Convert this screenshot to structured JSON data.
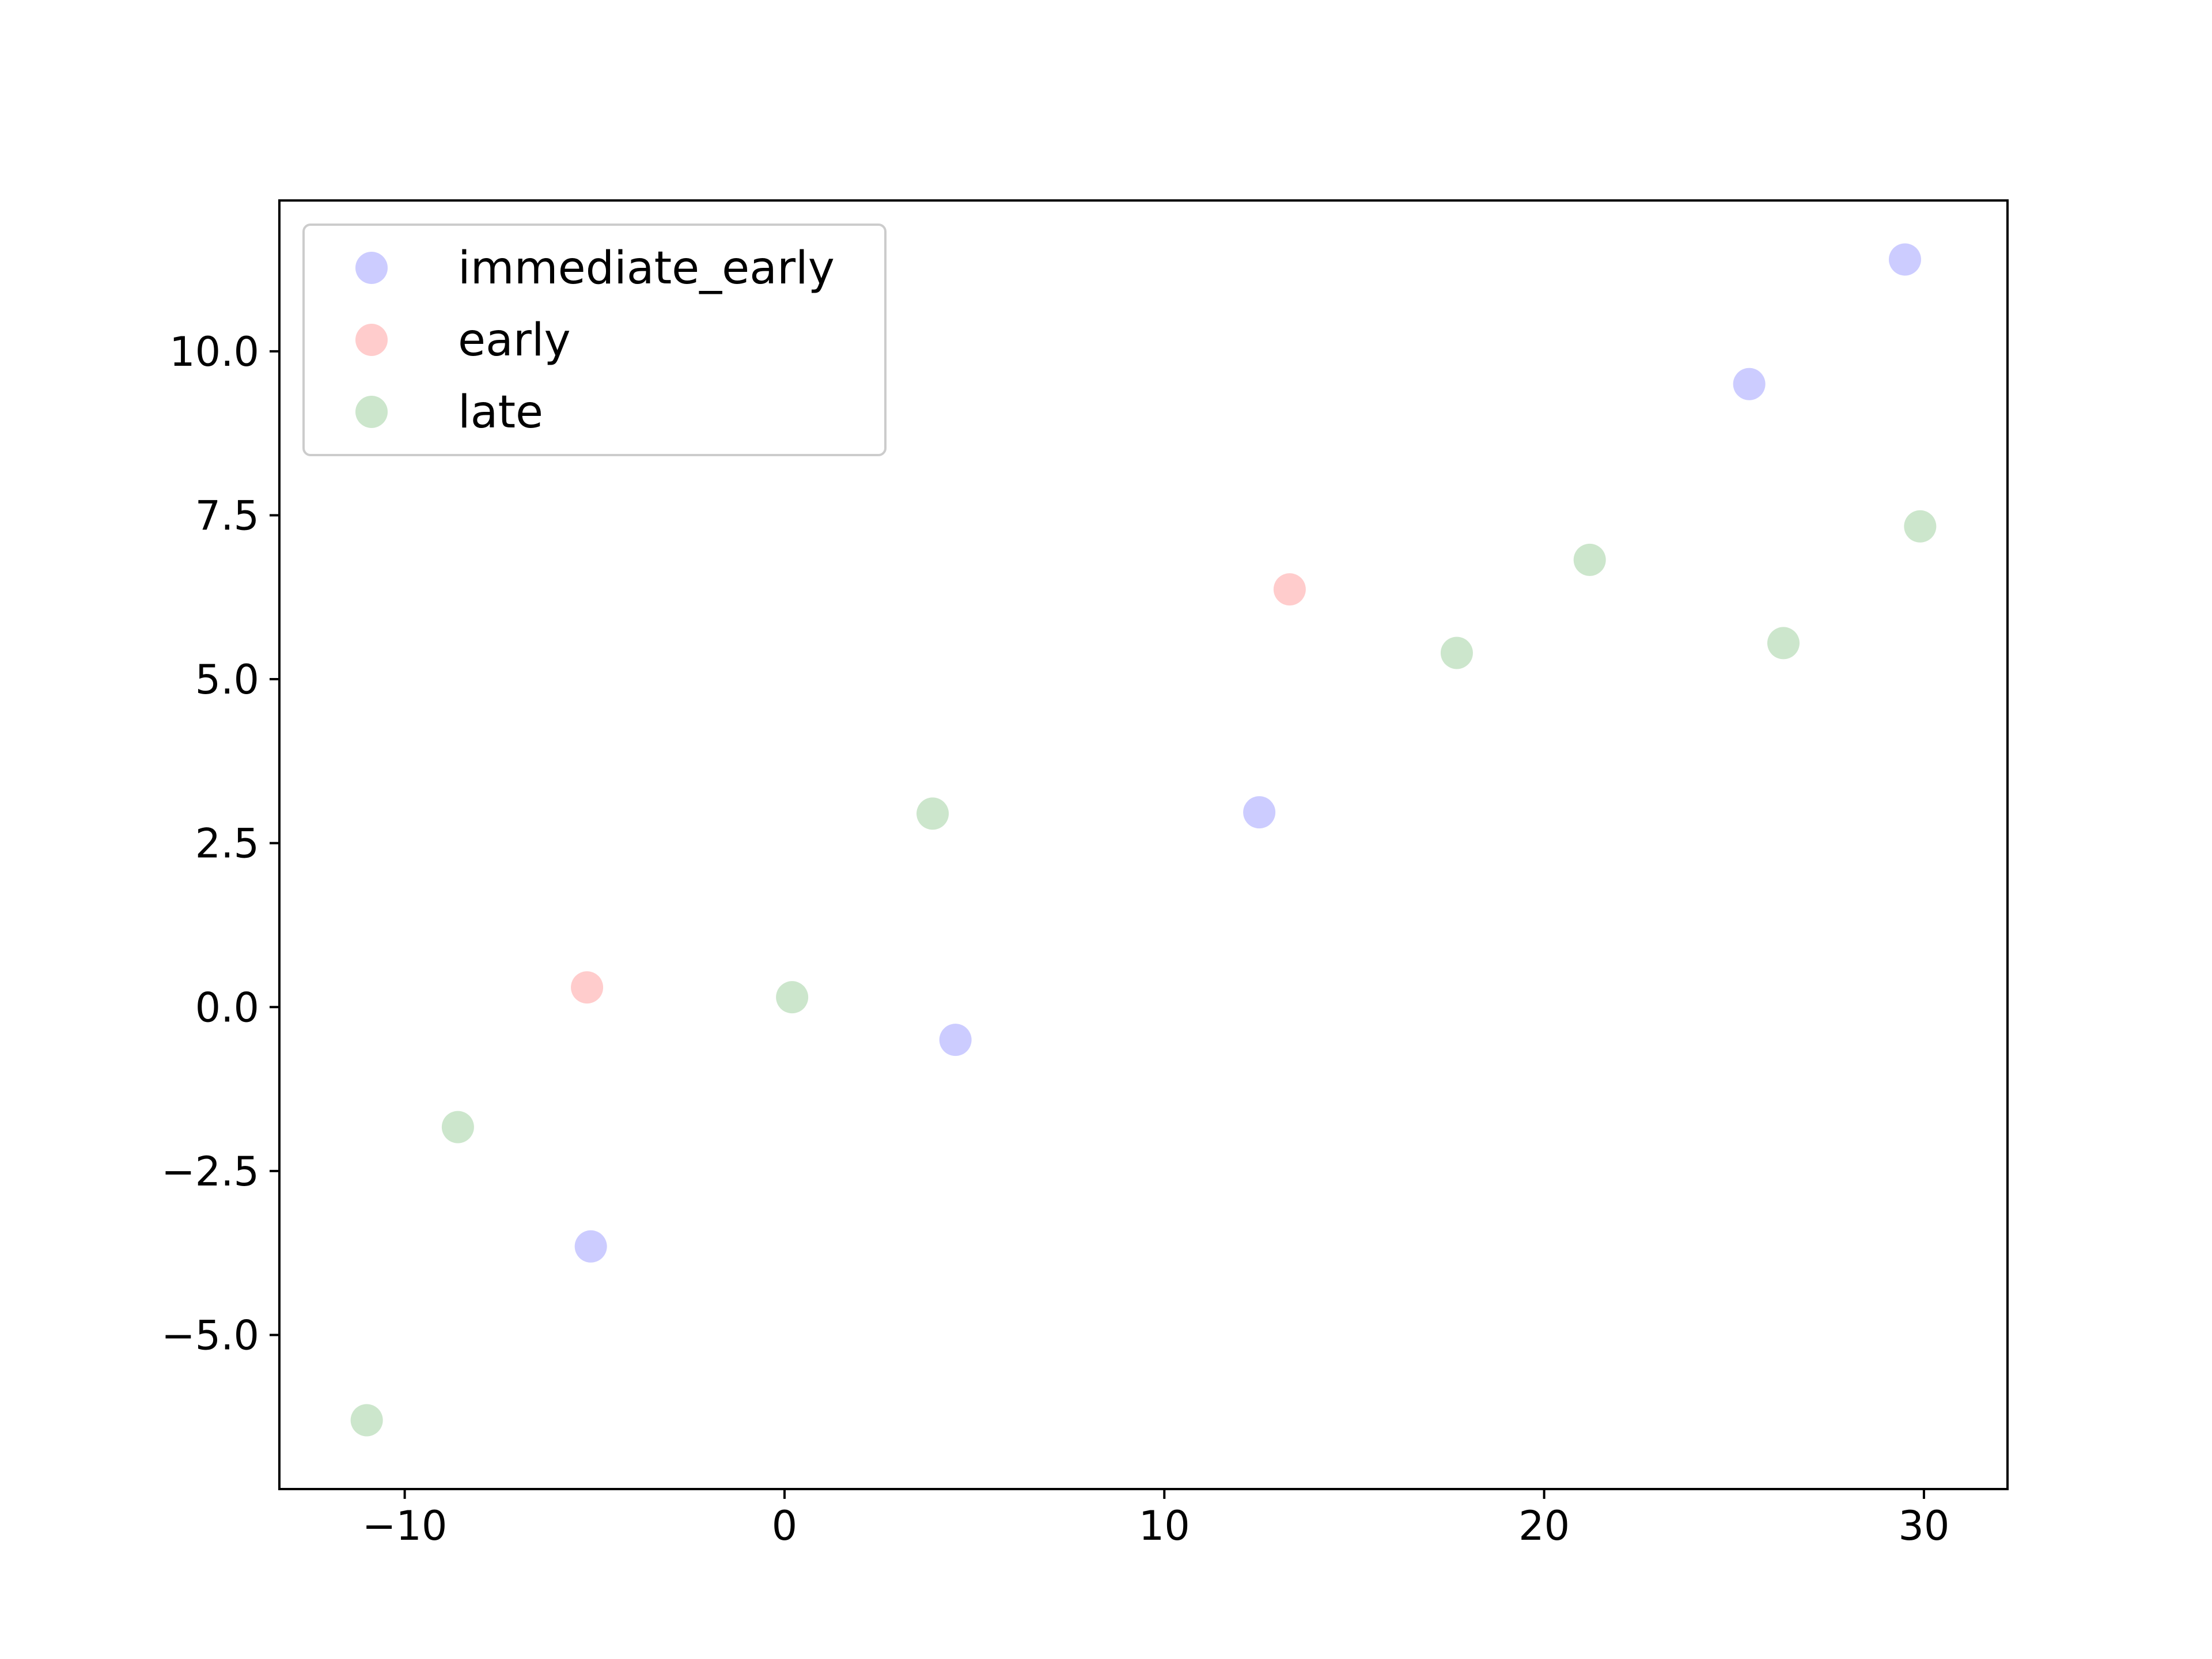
{
  "chart_data": {
    "type": "scatter",
    "title": "",
    "xlabel": "",
    "ylabel": "",
    "xlim": [
      -13.3,
      32.2
    ],
    "ylim": [
      -7.35,
      12.3
    ],
    "xticks": [
      -10,
      0,
      10,
      20,
      30
    ],
    "xtick_labels": [
      "−10",
      "0",
      "10",
      "20",
      "30"
    ],
    "yticks": [
      -5.0,
      -2.5,
      0.0,
      2.5,
      5.0,
      7.5,
      10.0
    ],
    "ytick_labels": [
      "−5.0",
      "−2.5",
      "0.0",
      "2.5",
      "5.0",
      "7.5",
      "10.0"
    ],
    "grid": false,
    "legend_position": "top-left",
    "series": [
      {
        "name": "immediate_early",
        "color": "#0000ff",
        "alpha": 0.2,
        "points": [
          [
            -5.1,
            -3.65
          ],
          [
            4.5,
            -0.5
          ],
          [
            12.5,
            2.97
          ],
          [
            25.4,
            9.5
          ],
          [
            29.5,
            11.4
          ]
        ]
      },
      {
        "name": "early",
        "color": "#ff0000",
        "alpha": 0.2,
        "points": [
          [
            -5.2,
            0.3
          ],
          [
            13.3,
            6.37
          ]
        ]
      },
      {
        "name": "late",
        "color": "#008000",
        "alpha": 0.2,
        "points": [
          [
            -11.0,
            -6.3
          ],
          [
            -8.6,
            -1.83
          ],
          [
            0.2,
            0.15
          ],
          [
            3.9,
            2.95
          ],
          [
            17.7,
            5.4
          ],
          [
            21.2,
            6.82
          ],
          [
            26.3,
            5.55
          ],
          [
            29.9,
            7.33
          ]
        ]
      }
    ]
  }
}
